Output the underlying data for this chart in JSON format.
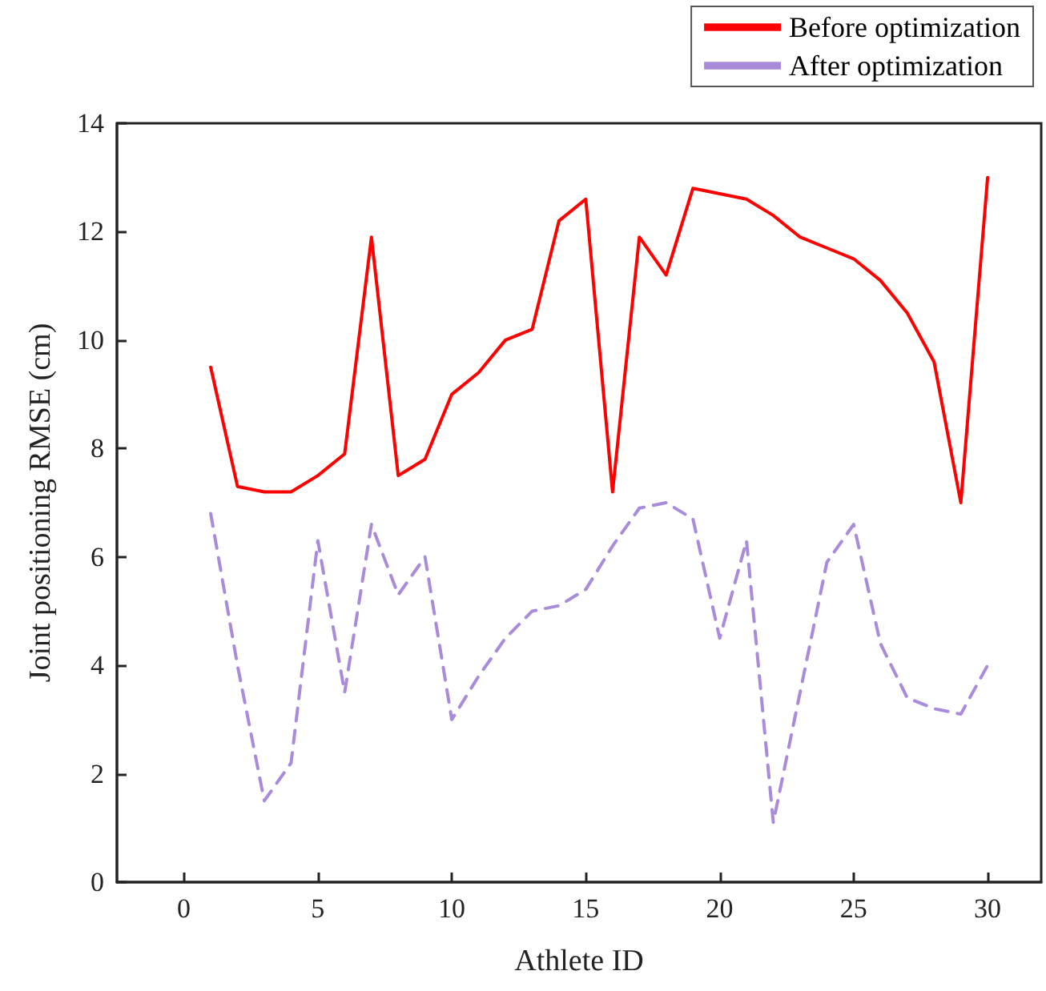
{
  "chart_data": {
    "type": "line",
    "xlabel": "Athlete ID",
    "ylabel": "Joint positioning RMSE (cm)",
    "x": [
      1,
      2,
      3,
      4,
      5,
      6,
      7,
      8,
      9,
      10,
      11,
      12,
      13,
      14,
      15,
      16,
      17,
      18,
      19,
      20,
      21,
      22,
      23,
      24,
      25,
      26,
      27,
      28,
      29,
      30
    ],
    "series": [
      {
        "name": "Before optimization",
        "color": "#ff0000",
        "line_style": "solid",
        "values": [
          9.5,
          7.3,
          7.2,
          7.2,
          7.5,
          7.9,
          11.9,
          7.5,
          7.8,
          9.0,
          9.4,
          10.0,
          10.2,
          12.2,
          12.6,
          7.2,
          11.9,
          11.2,
          12.8,
          12.7,
          12.6,
          12.3,
          11.9,
          11.7,
          11.5,
          11.1,
          10.5,
          9.6,
          7.0,
          13.0
        ]
      },
      {
        "name": "After optimization",
        "color": "#a98bdb",
        "line_style": "dashed",
        "values": [
          6.8,
          4.0,
          1.5,
          2.2,
          6.3,
          3.5,
          6.6,
          5.3,
          6.0,
          3.0,
          3.8,
          4.5,
          5.0,
          5.1,
          5.4,
          6.2,
          6.9,
          7.0,
          6.7,
          4.5,
          6.3,
          1.1,
          3.5,
          5.9,
          6.6,
          4.4,
          3.4,
          3.2,
          3.1,
          4.0
        ]
      }
    ],
    "xlim": [
      -2.5,
      32
    ],
    "xticks": [
      0,
      5,
      10,
      15,
      20,
      25,
      30
    ],
    "ylim": [
      0,
      14
    ],
    "yticks": [
      0,
      2,
      4,
      6,
      8,
      10,
      12,
      14
    ],
    "grid": false,
    "legend": "top right",
    "marker": "none"
  }
}
